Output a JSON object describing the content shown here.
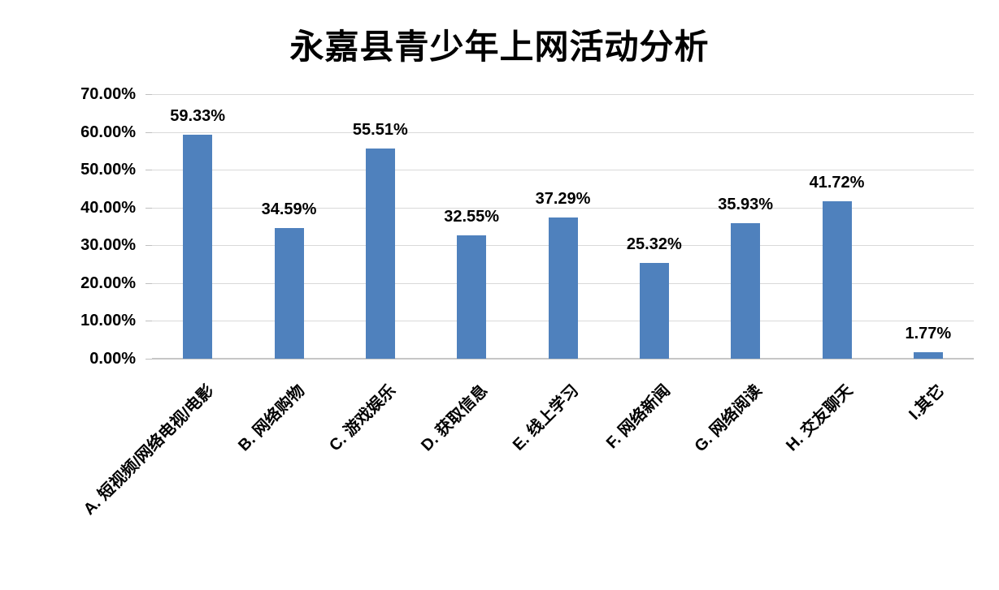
{
  "chart_data": {
    "type": "bar",
    "title": "永嘉县青少年上网活动分析",
    "categories": [
      "A. 短视频/网络电视/电影",
      "B. 网络购物",
      "C. 游戏娱乐",
      "D. 获取信息",
      "E. 线上学习",
      "F. 网络新闻",
      "G. 网络阅读",
      "H. 交友聊天",
      "I.其它"
    ],
    "values": [
      59.33,
      34.59,
      55.51,
      32.55,
      37.29,
      25.32,
      35.93,
      41.72,
      1.77
    ],
    "data_labels": [
      "59.33%",
      "34.59%",
      "55.51%",
      "32.55%",
      "37.29%",
      "25.32%",
      "35.93%",
      "41.72%",
      "1.77%"
    ],
    "y_tick_labels": [
      "70.00%",
      "60.00%",
      "50.00%",
      "40.00%",
      "30.00%",
      "20.00%",
      "10.00%",
      "0.00%"
    ],
    "ylim": [
      0,
      70
    ],
    "y_tick_step": 10,
    "grid": true,
    "legend": "none",
    "bar_color": "#4f81bd",
    "gridline_color": "#d9d9d9",
    "axis_line_color": "#c6c6c6",
    "text_color": "#000000"
  }
}
